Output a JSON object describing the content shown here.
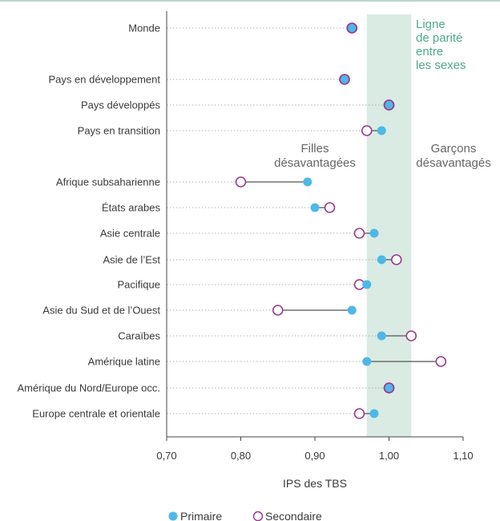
{
  "chart_data": {
    "type": "scatter",
    "xlabel": "IPS des TBS",
    "xlim": [
      0.7,
      1.1
    ],
    "xticks": [
      "0,70",
      "0,80",
      "0,90",
      "1,00",
      "1,10"
    ],
    "parity_band": [
      0.97,
      1.03
    ],
    "parity_label": [
      "Ligne",
      "de parité",
      "entre",
      "les sexes"
    ],
    "annotation_left": [
      "Filles",
      "désavantagées"
    ],
    "annotation_right": [
      "Garçons",
      "désavantagés"
    ],
    "categories": [
      "Monde",
      "Pays en développement",
      "Pays développés",
      "Pays en transition",
      "Afrique subsaharienne",
      "États arabes",
      "Asie centrale",
      "Asie de l’Est",
      "Pacifique",
      "Asie du Sud et de l’Ouest",
      "Caraïbes",
      "Amérique latine",
      "Amérique du Nord/Europe occ.",
      "Europe centrale et orientale"
    ],
    "series": [
      {
        "name": "Primaire",
        "values": [
          0.95,
          0.94,
          1.0,
          0.99,
          0.89,
          0.9,
          0.98,
          0.99,
          0.97,
          0.95,
          0.99,
          0.97,
          1.0,
          0.98
        ]
      },
      {
        "name": "Secondaire",
        "values": [
          0.95,
          0.94,
          1.0,
          0.97,
          0.8,
          0.92,
          0.96,
          1.01,
          0.96,
          0.85,
          1.03,
          1.07,
          1.0,
          0.96
        ]
      }
    ],
    "colors": {
      "primary": "#4db8e8",
      "secondary": "#9c3a8e",
      "band": "#d9ebe3",
      "connector": "#555555"
    },
    "legend_position": "bottom"
  }
}
